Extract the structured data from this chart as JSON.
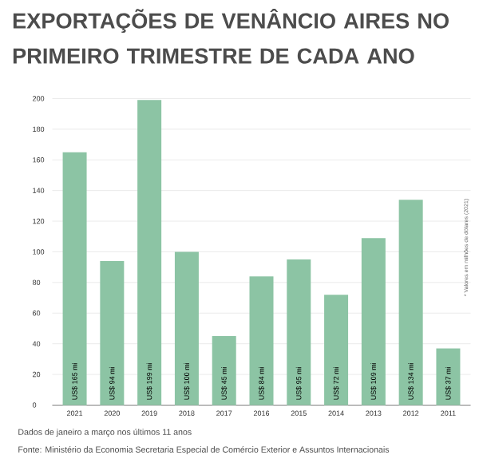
{
  "chart_data": {
    "type": "bar",
    "title": "EXPORTAÇÕES DE VENÂNCIO AIRES NO PRIMEIRO TRIMESTRE DE CADA ANO",
    "categories": [
      "2021",
      "2020",
      "2019",
      "2018",
      "2017",
      "2016",
      "2015",
      "2014",
      "2013",
      "2012",
      "2011"
    ],
    "values": [
      165,
      94,
      199,
      100,
      45,
      84,
      95,
      72,
      109,
      134,
      37
    ],
    "value_labels": [
      "US$ 165 mi",
      "US$ 94 mi",
      "US$ 199 mi",
      "US$ 100 mi",
      "US$ 45 mi",
      "US$ 84 mi",
      "US$ 95 mi",
      "US$ 72 mi",
      "US$ 109 mi",
      "US$ 134 mi",
      "US$ 37 mi"
    ],
    "color": "#8cc4a4",
    "ylim": [
      0,
      200
    ],
    "yticks": [
      0,
      20,
      40,
      60,
      80,
      100,
      120,
      140,
      160,
      180,
      200
    ],
    "grid": "y",
    "annotations": [
      "* Valores em milhões de dólares (2021)",
      "Dados de janeiro a março nos últimos 11 anos",
      "Fonte: Ministério da Economia Secretaria Especial de Comércio Exterior e Assuntos Internacionais"
    ]
  }
}
